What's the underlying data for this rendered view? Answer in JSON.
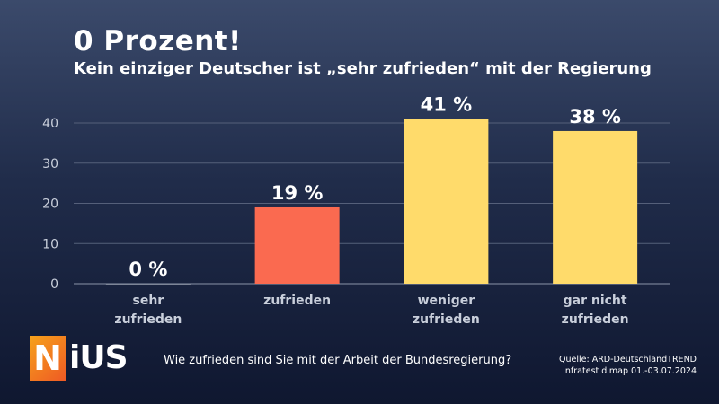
{
  "header": {
    "title": "0 Prozent!",
    "subtitle": "Kein einziger Deutscher ist „sehr zufrieden“ mit der Regierung"
  },
  "logo": {
    "letter": "N",
    "rest": "iUS"
  },
  "footer": {
    "question": "Wie zufrieden sind Sie mit der Arbeit der Bundesregierung?",
    "source_line1": "Quelle: ARD-DeutschlandTREND",
    "source_line2": "infratest dimap 01.-03.07.2024"
  },
  "chart_data": {
    "type": "bar",
    "categories": [
      [
        "sehr",
        "zufrieden"
      ],
      [
        "zufrieden"
      ],
      [
        "weniger",
        "zufrieden"
      ],
      [
        "gar nicht",
        "zufrieden"
      ]
    ],
    "values": [
      0,
      19,
      41,
      38
    ],
    "value_labels": [
      "0 %",
      "19 %",
      "41 %",
      "38 %"
    ],
    "colors": [
      "#7d8597",
      "#fa6a50",
      "#ffdb6b",
      "#ffdb6b"
    ],
    "yticks": [
      0,
      10,
      20,
      30,
      40
    ],
    "ylim": [
      0,
      40
    ],
    "grid": true,
    "legend": "none"
  }
}
